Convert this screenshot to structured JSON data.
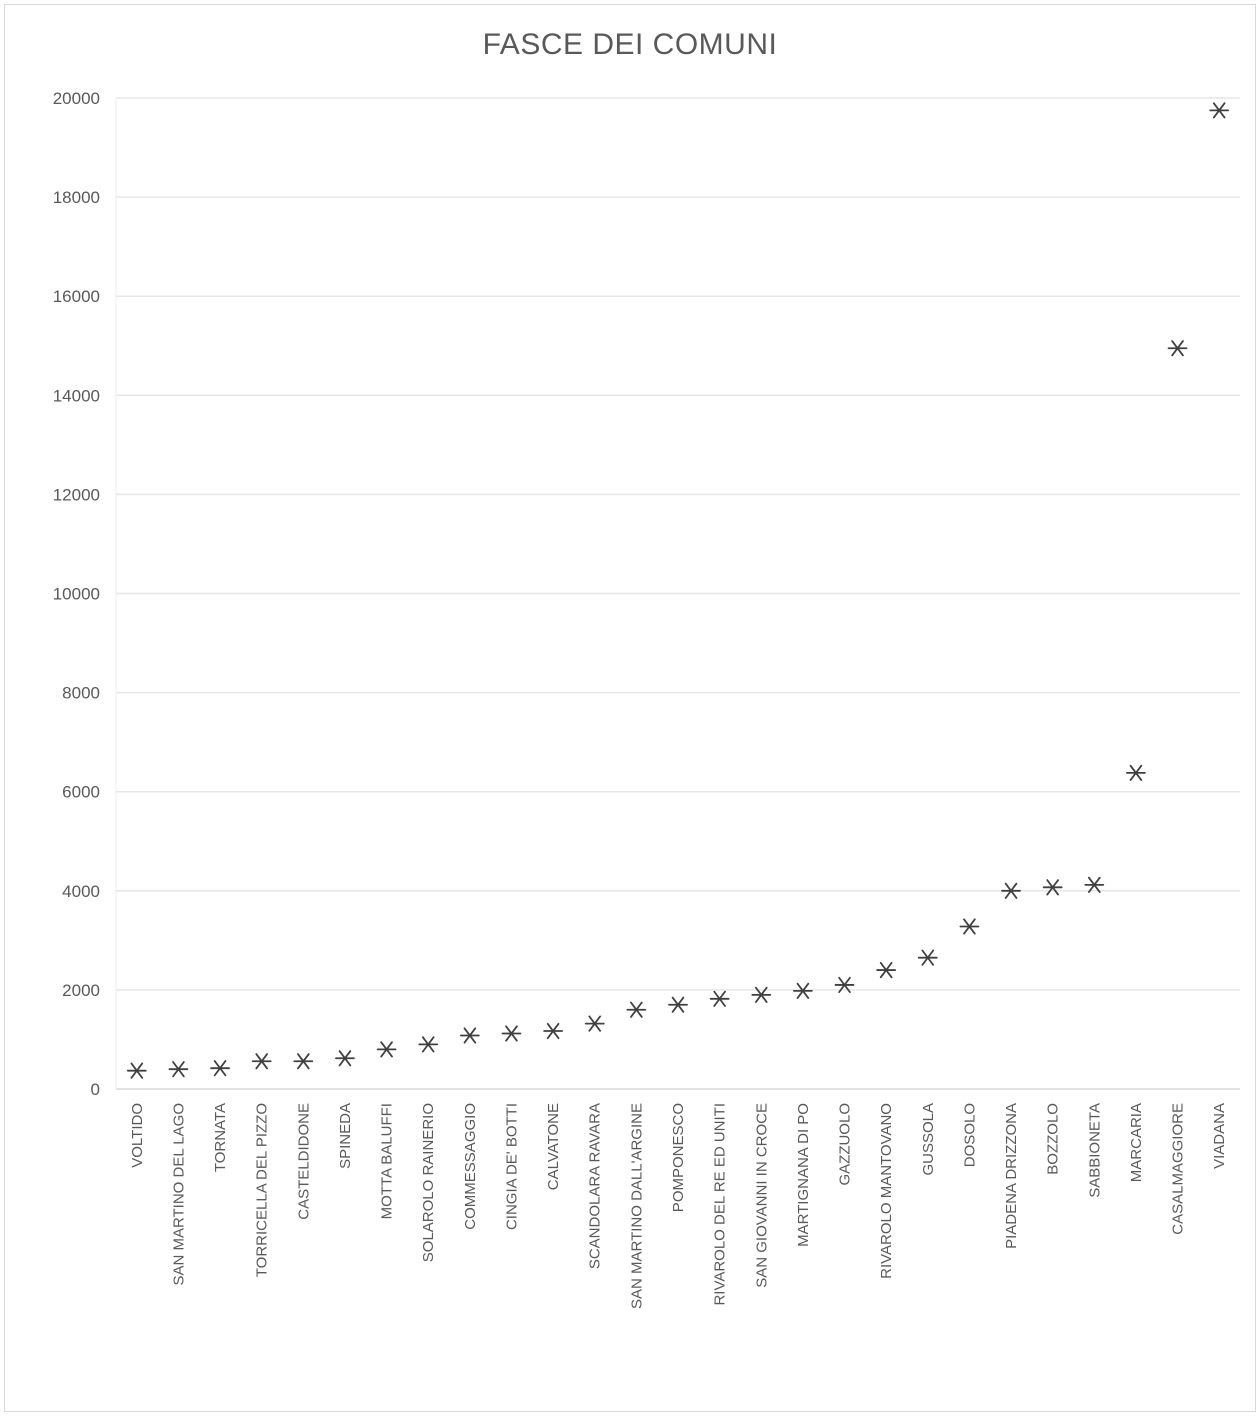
{
  "chart_data": {
    "type": "scatter",
    "title": "FASCE DEI COMUNI",
    "xlabel": "",
    "ylabel": "",
    "ylim": [
      0,
      20000
    ],
    "yticks": [
      0,
      2000,
      4000,
      6000,
      8000,
      10000,
      12000,
      14000,
      16000,
      18000,
      20000
    ],
    "grid": "horizontal",
    "legend": "none",
    "marker": "asterisk",
    "marker_color": "#404040",
    "gridline_color": "#e6e6e6",
    "text_color": "#595959",
    "categories": [
      "VOLTIDO",
      "SAN MARTINO DEL LAGO",
      "TORNATA",
      "TORRICELLA DEL PIZZO",
      "CASTELDIDONE",
      "SPINEDA",
      "MOTTA BALUFFI",
      "SOLAROLO RAINERIO",
      "COMMESSAGGIO",
      "CINGIA DE' BOTTI",
      "CALVATONE",
      "SCANDOLARA RAVARA",
      "SAN MARTINO DALL'ARGINE",
      "POMPONESCO",
      "RIVAROLO DEL RE ED UNITI",
      "SAN GIOVANNI IN CROCE",
      "MARTIGNANA DI PO",
      "GAZZUOLO",
      "RIVAROLO MANTOVANO",
      "GUSSOLA",
      "DOSOLO",
      "PIADENA DRIZZONA",
      "BOZZOLO",
      "SABBIONETA",
      "MARCARIA",
      "CASALMAGGIORE",
      "VIADANA"
    ],
    "values": [
      370,
      400,
      420,
      560,
      560,
      620,
      800,
      900,
      1080,
      1120,
      1170,
      1320,
      1600,
      1700,
      1820,
      1900,
      1980,
      2100,
      2400,
      2650,
      3280,
      4000,
      4070,
      4120,
      6380,
      14950,
      19750
    ]
  }
}
